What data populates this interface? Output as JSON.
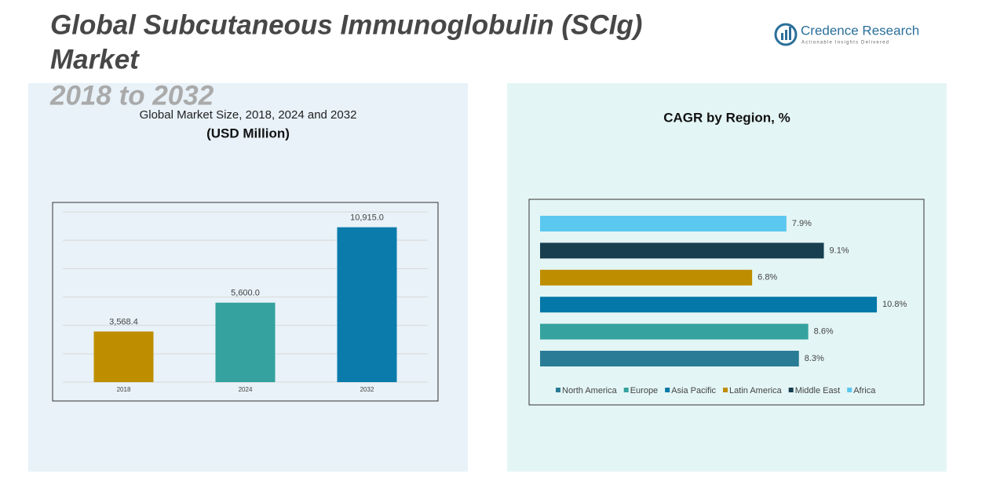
{
  "header": {
    "title_lines": [
      "Global Subcutaneous Immunoglobulin (SCIg)",
      "Market",
      "2018 to 2032"
    ],
    "logo_name": "Credence Research",
    "logo_tagline": "Actionable Insights Delivered"
  },
  "chart_data": [
    {
      "type": "bar",
      "title": "Global Market Size, 2018, 2024 and 2032",
      "subtitle": "(USD Million)",
      "categories": [
        "2018",
        "2024",
        "2032"
      ],
      "values": [
        3568.4,
        5600.0,
        10915.0
      ],
      "value_labels": [
        "3,568.4",
        "5,600.0",
        "10,915.0"
      ],
      "colors": [
        "#bf8e00",
        "#35a29f",
        "#0a7bab"
      ],
      "ylim": [
        0,
        12000
      ],
      "grid": true
    },
    {
      "type": "barh",
      "title": "CAGR by Region, %",
      "categories": [
        "North America",
        "Europe",
        "Asia Pacific",
        "Latin America",
        "Middle East",
        "Africa"
      ],
      "values": [
        8.3,
        8.6,
        10.8,
        6.8,
        9.1,
        7.9
      ],
      "value_labels": [
        "8.3%",
        "8.6%",
        "10.8%",
        "6.8%",
        "9.1%",
        "7.9%"
      ],
      "colors": [
        "#2a7c96",
        "#35a29f",
        "#0478a8",
        "#bf8e00",
        "#173f4f",
        "#5bc8f0"
      ],
      "xlim": [
        0,
        11
      ],
      "legend": "bottom"
    }
  ]
}
